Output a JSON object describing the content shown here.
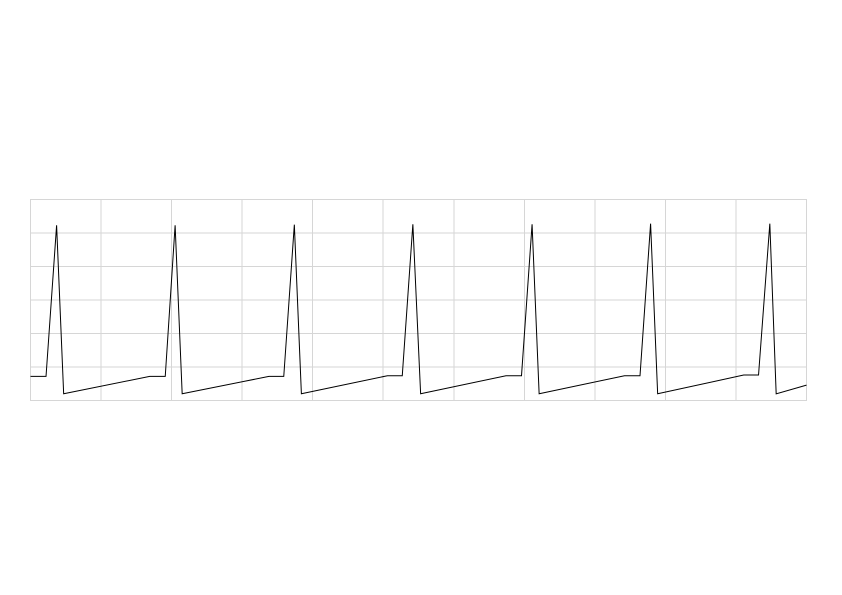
{
  "chart_data": {
    "type": "line",
    "title": "",
    "xlabel": "",
    "ylabel": "",
    "grid": true,
    "grid_divisions": {
      "x": 11,
      "y": 6
    },
    "xlim": [
      0,
      11
    ],
    "ylim": [
      0,
      6
    ],
    "colors": {
      "line": "#000000",
      "grid": "#d6d6d6",
      "background": "#ffffff"
    },
    "series": [
      {
        "values_x": [
          0,
          0.22,
          0.37,
          0.47,
          1.69,
          1.91,
          2.05,
          2.15,
          3.38,
          3.59,
          3.74,
          3.84,
          5.06,
          5.27,
          5.42,
          5.53,
          6.74,
          6.96,
          7.11,
          7.21,
          8.42,
          8.64,
          8.79,
          8.89,
          10.11,
          10.32,
          10.48,
          10.57,
          11.0
        ],
        "values_y": [
          0.72,
          0.72,
          5.23,
          0.2,
          0.72,
          0.72,
          5.23,
          0.2,
          0.72,
          0.72,
          5.25,
          0.2,
          0.74,
          0.74,
          5.26,
          0.2,
          0.74,
          0.74,
          5.26,
          0.2,
          0.74,
          0.74,
          5.28,
          0.2,
          0.76,
          0.76,
          5.28,
          0.2,
          0.46
        ]
      }
    ]
  }
}
